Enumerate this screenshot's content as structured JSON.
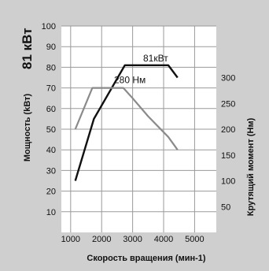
{
  "chart_data": {
    "type": "line",
    "title": "81 кВт",
    "xlabel": "Скорость вращения (мин-1)",
    "ylabel_left": "Мощность (kВт)",
    "ylabel_right": "Крутящий момент (Нм)",
    "xlim": [
      700,
      5700
    ],
    "x_ticks": [
      1000,
      2000,
      3000,
      4000,
      5000
    ],
    "ylim_left": [
      0,
      100
    ],
    "y_ticks_left": [
      10,
      20,
      30,
      40,
      50,
      60,
      70,
      80,
      90,
      100
    ],
    "ylim_right": [
      0,
      400
    ],
    "y_ticks_right": [
      50,
      100,
      150,
      200,
      250,
      300
    ],
    "grid": true,
    "series": [
      {
        "name": "81кВт",
        "axis": "left",
        "color": "#111111",
        "x": [
          1150,
          1750,
          2750,
          4150,
          4450
        ],
        "y": [
          25,
          55,
          81,
          81,
          75
        ]
      },
      {
        "name": "280 Нм",
        "axis": "right",
        "color": "#8a8a8a",
        "x": [
          1150,
          1700,
          2700,
          3000,
          3500,
          4150,
          4450
        ],
        "y": [
          200,
          280,
          280,
          260,
          225,
          185,
          160
        ]
      }
    ]
  }
}
